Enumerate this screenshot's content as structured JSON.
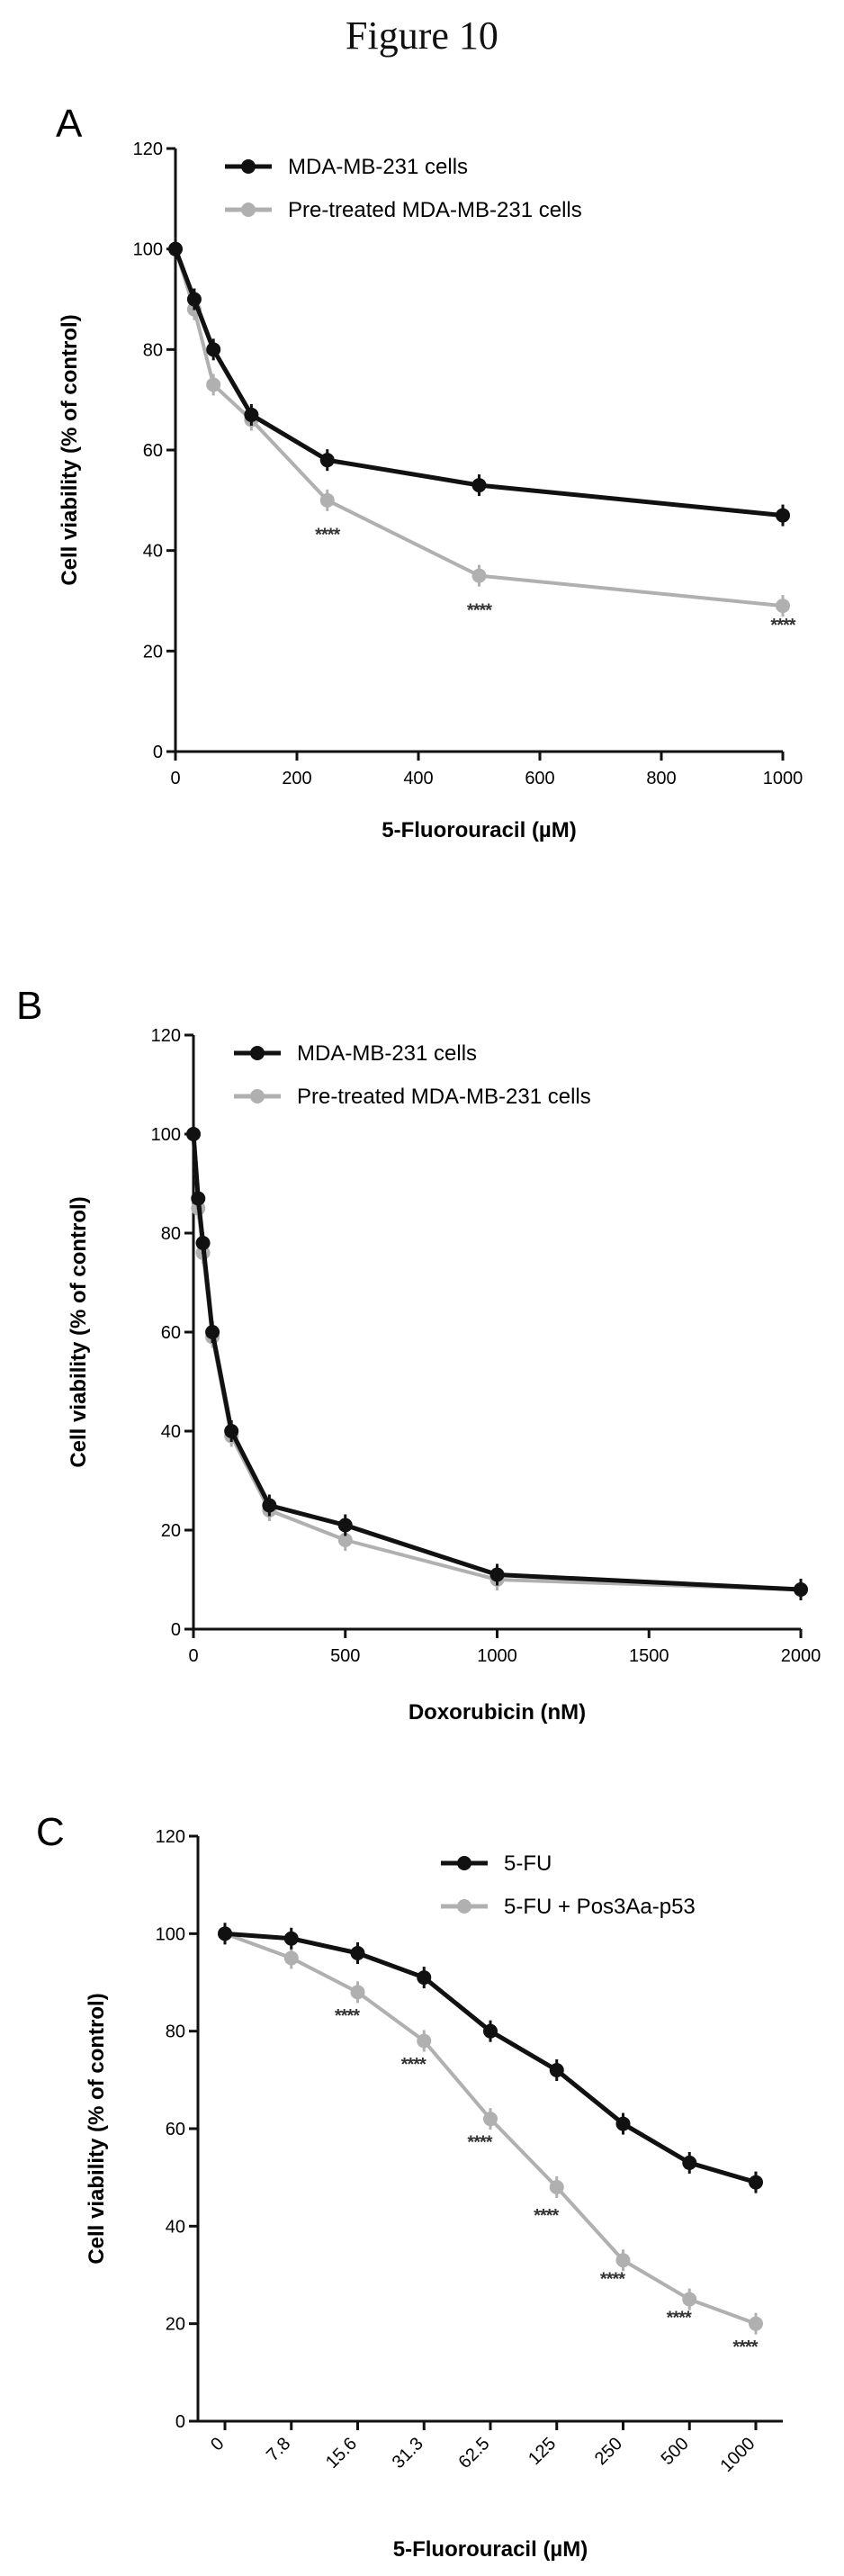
{
  "figure_title": "Figure 10",
  "chart_data": [
    {
      "panel": "A",
      "type": "line",
      "xlabel": "5-Fluorouracil (µM)",
      "ylabel": "Cell viability (% of control)",
      "xlim": [
        0,
        1000
      ],
      "ylim": [
        0,
        120
      ],
      "xticks": [
        "0",
        "200",
        "400",
        "600",
        "800",
        "1000"
      ],
      "yticks": [
        "0",
        "20",
        "40",
        "60",
        "80",
        "100",
        "120"
      ],
      "legend_position": "top",
      "series": [
        {
          "name": "MDA-MB-231 cells",
          "color": "#111111",
          "x": [
            0,
            31,
            62.5,
            125,
            250,
            500,
            1000
          ],
          "y": [
            100,
            90,
            80,
            67,
            58,
            53,
            47
          ]
        },
        {
          "name": "Pre-treated MDA-MB-231 cells",
          "color": "#b0b0b0",
          "x": [
            0,
            31,
            62.5,
            125,
            250,
            500,
            1000
          ],
          "y": [
            100,
            88,
            73,
            66,
            50,
            35,
            29
          ]
        }
      ],
      "annotations": [
        {
          "x": 250,
          "y": 42,
          "text": "****"
        },
        {
          "x": 500,
          "y": 27,
          "text": "****"
        },
        {
          "x": 1000,
          "y": 24,
          "text": "****"
        }
      ]
    },
    {
      "panel": "B",
      "type": "line",
      "xlabel": "Doxorubicin (nM)",
      "ylabel": "Cell viability (% of control)",
      "xlim": [
        0,
        2000
      ],
      "ylim": [
        0,
        120
      ],
      "xticks": [
        "0",
        "500",
        "1000",
        "1500",
        "2000"
      ],
      "yticks": [
        "0",
        "20",
        "40",
        "60",
        "80",
        "100",
        "120"
      ],
      "legend_position": "top",
      "series": [
        {
          "name": "MDA-MB-231 cells",
          "color": "#111111",
          "x": [
            0,
            15.6,
            31.3,
            62.5,
            125,
            250,
            500,
            1000,
            2000
          ],
          "y": [
            100,
            87,
            78,
            60,
            40,
            25,
            21,
            11,
            8
          ]
        },
        {
          "name": "Pre-treated MDA-MB-231 cells",
          "color": "#b0b0b0",
          "x": [
            0,
            15.6,
            31.3,
            62.5,
            125,
            250,
            500,
            1000,
            2000
          ],
          "y": [
            100,
            85,
            76,
            59,
            39,
            24,
            18,
            10,
            8
          ]
        }
      ],
      "annotations": []
    },
    {
      "panel": "C",
      "type": "line",
      "xlabel": "5-Fluorouracil (µM)",
      "ylabel": "Cell viability (% of control)",
      "x_scale": "categorical",
      "categories": [
        "0",
        "7.8",
        "15.6",
        "31.3",
        "62.5",
        "125",
        "250",
        "500",
        "1000"
      ],
      "ylim": [
        0,
        120
      ],
      "yticks": [
        "0",
        "20",
        "40",
        "60",
        "80",
        "100",
        "120"
      ],
      "legend_position": "top-right",
      "series": [
        {
          "name": "5-FU",
          "color": "#111111",
          "values": [
            100,
            99,
            96,
            91,
            80,
            72,
            61,
            53,
            49
          ]
        },
        {
          "name": "5-FU + Pos3Aa-p53",
          "color": "#b0b0b0",
          "values": [
            100,
            95,
            88,
            78,
            62,
            48,
            33,
            25,
            20
          ]
        }
      ],
      "annotations": [
        {
          "category": "15.6",
          "y": 82,
          "text": "****"
        },
        {
          "category": "31.3",
          "y": 72,
          "text": "****"
        },
        {
          "category": "62.5",
          "y": 56,
          "text": "****"
        },
        {
          "category": "125",
          "y": 41,
          "text": "****"
        },
        {
          "category": "250",
          "y": 28,
          "text": "****"
        },
        {
          "category": "500",
          "y": 20,
          "text": "****"
        },
        {
          "category": "1000",
          "y": 14,
          "text": "****"
        }
      ]
    }
  ]
}
